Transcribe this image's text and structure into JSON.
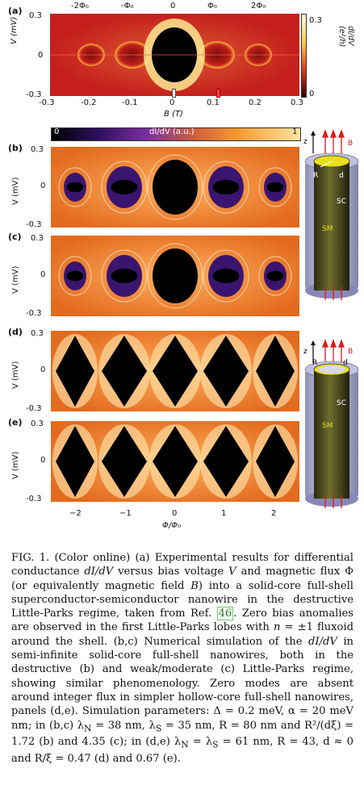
{
  "panel_a": {
    "label": "(a)",
    "top_ticks": [
      "-2Φ₀",
      "-Φ₀",
      "0",
      "Φ₀",
      "2Φ₀"
    ],
    "y_axis_label": "V (mV)",
    "y_ticks": [
      "0.3",
      "0",
      "-0.3"
    ],
    "x_ticks": [
      "-0.3",
      "-0.2",
      "-0.1",
      "0",
      "0.1",
      "0.2",
      "0.3"
    ],
    "x_axis_label": "B (T)",
    "colorbar_ticks": [
      "0.3",
      "0"
    ],
    "colorbar_label": "dI/dV (e²/h)"
  },
  "colorbar_b": {
    "min": "0",
    "label": "dI/dV (a.u.)",
    "max": "1"
  },
  "panels_sim": [
    {
      "label": "(b)",
      "y_label": "V (mV)",
      "y_ticks": [
        "0.3",
        "0",
        "-0.3"
      ]
    },
    {
      "label": "(c)",
      "y_label": "V (mV)",
      "y_ticks": [
        "0.3",
        "0",
        "-0.3"
      ]
    },
    {
      "label": "(d)",
      "y_label": "V (mV)",
      "y_ticks": [
        "0.3",
        "0",
        "-0.3"
      ]
    },
    {
      "label": "(e)",
      "y_label": "V (mV)",
      "y_ticks": [
        "0.3",
        "0",
        "-0.3"
      ]
    }
  ],
  "x_ticks_bottom": [
    "−2",
    "−1",
    "0",
    "1",
    "2"
  ],
  "x_label_bottom": "Φ/Φ₀",
  "wire_solid": {
    "z": "z",
    "B": "B",
    "R": "R",
    "d": "d",
    "SC": "SC",
    "SM": "SM"
  },
  "wire_hollow": {
    "z": "z",
    "B": "B",
    "R": "R",
    "d": "d",
    "SC": "SC",
    "SM": "SM"
  },
  "caption": {
    "p1": "FIG. 1. (Color online) (a) Experimental results for differential conductance ",
    "i1": "dI/dV",
    "p2": " versus bias voltage ",
    "i2": "V",
    "p3": " and magnetic flux Φ (or equivalently magnetic field ",
    "i3": "B",
    "p4": ") into a solid-core full-shell superconductor-semiconductor nanowire in the destructive Little-Parks regime, taken from Ref. ",
    "ref": "46",
    "p5": ". Zero bias anomalies are observed in the first Little-Parks lobes with ",
    "i4": "n",
    "p6": " = ±1 fluxoid around the shell. (b,c) Numerical simulation of the ",
    "i5": "dI/dV",
    "p7": " in semi-infinite solid-core full-shell nanowires, both in the destructive (b) and weak/moderate (c) Little-Parks regime, showing similar phenomenology. Zero modes are absent around integer flux in simpler hollow-core full-shell nanowires, panels (d,e). Simulation parameters: Δ = 0.2 meV, α = 20 meV nm; in (b,c) λ",
    "s1": "N",
    "p8": " = 38 nm, λ",
    "s2": "S",
    "p9": " = 35 nm, R = 80 nm and R²/(dξ) = 1.72 (b) and 4.35 (c); in (d,e) λ",
    "s3": "N",
    "p10": " = λ",
    "s4": "S",
    "p11": " = 61 nm, R = 43, d ≈ 0 and R/ξ = 0.47 (d) and 0.67 (e)."
  },
  "colors": {
    "hot_mid": "#f08a2a",
    "hot_bright": "#ffe08a",
    "dark": "#000000",
    "purple": "#4b1a8a",
    "wire": "#3b3b1f",
    "shell": "#b9b9d6"
  }
}
